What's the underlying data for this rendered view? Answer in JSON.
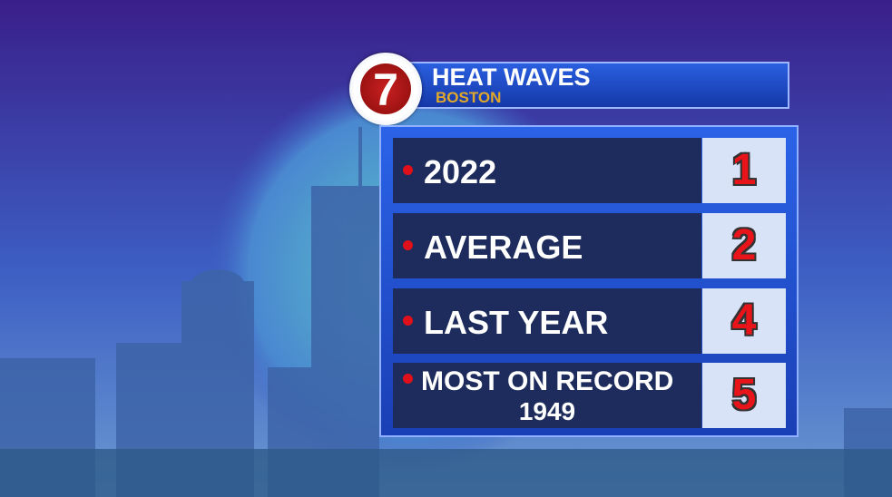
{
  "header": {
    "logo": "7",
    "title": "HEAT WAVES",
    "subtitle": "BOSTON"
  },
  "table": {
    "rows": [
      {
        "label": "2022",
        "value": 1
      },
      {
        "label": "AVERAGE",
        "value": 2
      },
      {
        "label": "LAST YEAR",
        "value": 4
      },
      {
        "label": "MOST ON RECORD",
        "note": "1949",
        "value": 5
      }
    ]
  }
}
